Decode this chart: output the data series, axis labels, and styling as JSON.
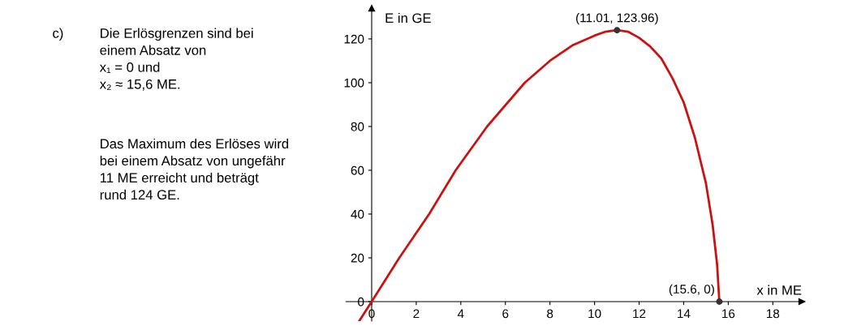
{
  "chart_data": {
    "type": "line",
    "xlabel": "x in ME",
    "ylabel": "E in GE",
    "xlim": [
      -1.15,
      19.3
    ],
    "ylim": [
      -8.9,
      134
    ],
    "xticks": [
      0,
      2,
      4,
      6,
      8,
      10,
      12,
      14,
      16,
      18
    ],
    "yticks": [
      0,
      20,
      40,
      60,
      80,
      100,
      120
    ],
    "grid": false,
    "legend": false,
    "series": [
      {
        "color": "#cc1111",
        "x": [
          -0.56,
          0,
          1.24,
          2.58,
          3.77,
          5.18,
          6.87,
          8,
          9,
          10,
          10.5,
          11.01,
          11.5,
          12,
          12.5,
          13,
          13.5,
          14,
          14.5,
          15,
          15.3,
          15.5,
          15.6
        ],
        "values": [
          -8.9,
          0,
          20,
          40,
          60,
          80,
          100,
          110,
          117,
          121.5,
          123.3,
          124,
          123.3,
          120.5,
          116.5,
          111,
          102,
          91,
          75,
          54,
          35,
          17,
          0
        ]
      },
      {
        "type": "scatter",
        "color": "#333333",
        "marker": "circle",
        "x": [
          11.01,
          15.6
        ],
        "values": [
          123.96,
          0
        ]
      }
    ],
    "annotations": [
      {
        "text": "(11.01, 123.96)",
        "x": 11.01,
        "y": 123.96
      },
      {
        "text": "(15.6, 0)",
        "x": 15.6,
        "y": 0
      },
      "c)",
      "Die Erlösgrenzen sind bei\neinem Absatz von\nx₁ = 0 und\nx₂ ≈ 15,6 ME.",
      "Das Maximum des Erlöses wird\nbei einem Absatz von ungefähr\n11 ME erreicht und beträgt\nrund 124 GE."
    ]
  }
}
